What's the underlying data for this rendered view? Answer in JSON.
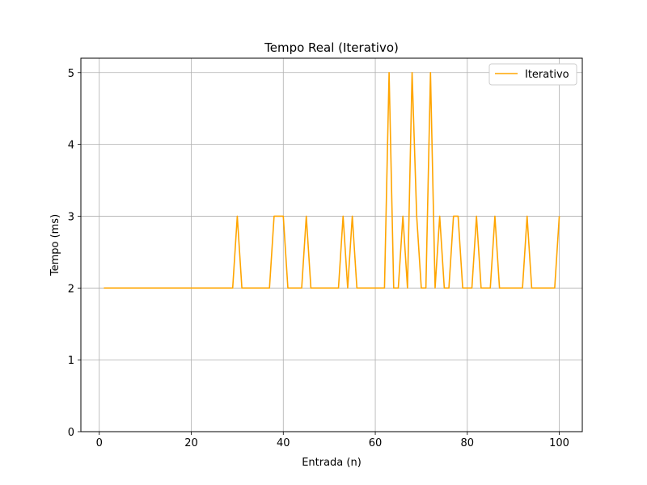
{
  "chart_data": {
    "type": "line",
    "title": "Tempo Real (Iterativo)",
    "xlabel": "Entrada (n)",
    "ylabel": "Tempo (ms)",
    "xlim": [
      -4,
      105
    ],
    "ylim": [
      0,
      5.2
    ],
    "x_ticks": [
      0,
      20,
      40,
      60,
      80,
      100
    ],
    "y_ticks": [
      0,
      1,
      2,
      3,
      4,
      5
    ],
    "grid": true,
    "legend_position": "top-right",
    "series": [
      {
        "name": "Iterativo",
        "color": "#ffa500",
        "x": [
          1,
          2,
          3,
          4,
          5,
          6,
          7,
          8,
          9,
          10,
          11,
          12,
          13,
          14,
          15,
          16,
          17,
          18,
          19,
          20,
          21,
          22,
          23,
          24,
          25,
          26,
          27,
          28,
          29,
          30,
          31,
          32,
          33,
          34,
          35,
          36,
          37,
          38,
          39,
          40,
          41,
          42,
          43,
          44,
          45,
          46,
          47,
          48,
          49,
          50,
          51,
          52,
          53,
          54,
          55,
          56,
          57,
          58,
          59,
          60,
          61,
          62,
          63,
          64,
          65,
          66,
          67,
          68,
          69,
          70,
          71,
          72,
          73,
          74,
          75,
          76,
          77,
          78,
          79,
          80,
          81,
          82,
          83,
          84,
          85,
          86,
          87,
          88,
          89,
          90,
          91,
          92,
          93,
          94,
          95,
          96,
          97,
          98,
          99,
          100
        ],
        "values": [
          2,
          2,
          2,
          2,
          2,
          2,
          2,
          2,
          2,
          2,
          2,
          2,
          2,
          2,
          2,
          2,
          2,
          2,
          2,
          2,
          2,
          2,
          2,
          2,
          2,
          2,
          2,
          2,
          2,
          3,
          2,
          2,
          2,
          2,
          2,
          2,
          2,
          3,
          3,
          3,
          2,
          2,
          2,
          2,
          3,
          2,
          2,
          2,
          2,
          2,
          2,
          2,
          3,
          2,
          3,
          2,
          2,
          2,
          2,
          2,
          2,
          2,
          5,
          2,
          2,
          3,
          2,
          5,
          3,
          2,
          2,
          5,
          2,
          3,
          2,
          2,
          3,
          3,
          2,
          2,
          2,
          3,
          2,
          2,
          2,
          3,
          2,
          2,
          2,
          2,
          2,
          2,
          3,
          2,
          2,
          2,
          2,
          2,
          2,
          3
        ]
      }
    ]
  }
}
